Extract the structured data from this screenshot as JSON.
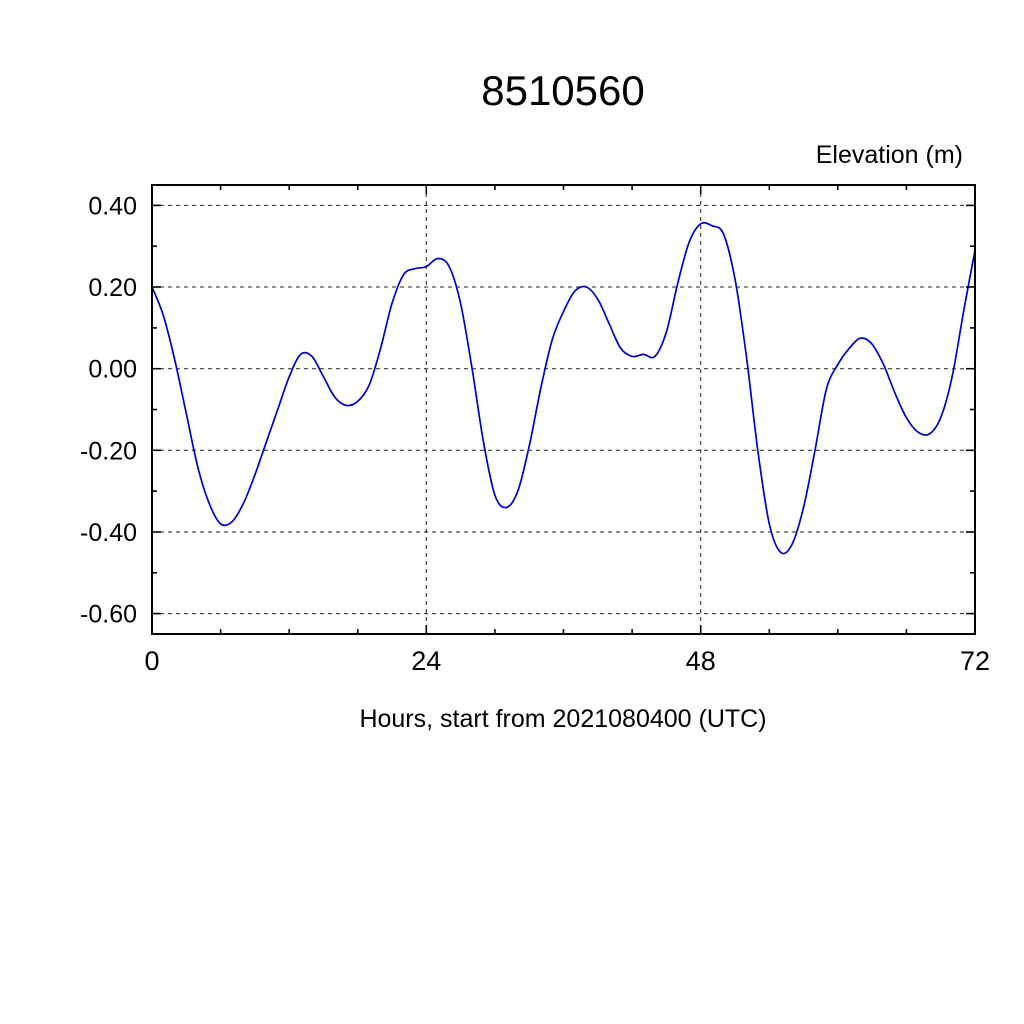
{
  "chart_data": {
    "type": "line",
    "title": "8510560",
    "ylabel": "Elevation (m)",
    "xlabel": "Hours, start from 2021080400 (UTC)",
    "xlim": [
      0,
      72
    ],
    "ylim": [
      -0.65,
      0.45
    ],
    "xticks": [
      0,
      24,
      48,
      72
    ],
    "xtick_labels": [
      "0",
      "24",
      "48",
      "72"
    ],
    "yticks": [
      0.4,
      0.2,
      0.0,
      -0.2,
      -0.4,
      -0.6
    ],
    "ytick_labels": [
      "0.40",
      "0.20",
      "0.00",
      "-0.20",
      "-0.40",
      "-0.60"
    ],
    "x_minor_step": 6,
    "y_minor_step": 0.1,
    "grid_x": [
      24,
      48
    ],
    "grid_y": [
      0.4,
      0.2,
      0.0,
      -0.2,
      -0.4,
      -0.6
    ],
    "line_color": "#0000cd",
    "frame_color": "#000000",
    "grid_on": true,
    "legend": "none",
    "series": [
      {
        "name": "elevation_m",
        "x": [
          0,
          1,
          2,
          3,
          4,
          5,
          6,
          7,
          8,
          9,
          10,
          11,
          12,
          13,
          14,
          15,
          16,
          17,
          18,
          19,
          20,
          21,
          22,
          23,
          24,
          25,
          26,
          27,
          28,
          29,
          30,
          31,
          32,
          33,
          34,
          35,
          36,
          37,
          38,
          39,
          40,
          41,
          42,
          43,
          44,
          45,
          46,
          47,
          48,
          49,
          50,
          51,
          52,
          53,
          54,
          55,
          56,
          57,
          58,
          59,
          60,
          61,
          62,
          63,
          64,
          65,
          66,
          67,
          68,
          69,
          70,
          71,
          72
        ],
        "y": [
          0.2,
          0.13,
          0.02,
          -0.11,
          -0.24,
          -0.33,
          -0.38,
          -0.375,
          -0.33,
          -0.26,
          -0.18,
          -0.1,
          -0.02,
          0.035,
          0.03,
          -0.02,
          -0.07,
          -0.09,
          -0.08,
          -0.04,
          0.05,
          0.16,
          0.23,
          0.245,
          0.25,
          0.27,
          0.25,
          0.16,
          0.0,
          -0.18,
          -0.31,
          -0.34,
          -0.3,
          -0.19,
          -0.05,
          0.07,
          0.14,
          0.19,
          0.2,
          0.17,
          0.11,
          0.05,
          0.03,
          0.035,
          0.03,
          0.09,
          0.21,
          0.31,
          0.355,
          0.35,
          0.33,
          0.22,
          0.03,
          -0.2,
          -0.38,
          -0.45,
          -0.43,
          -0.34,
          -0.2,
          -0.05,
          0.01,
          0.05,
          0.075,
          0.06,
          0.01,
          -0.06,
          -0.12,
          -0.155,
          -0.16,
          -0.12,
          -0.02,
          0.14,
          0.29
        ]
      }
    ]
  }
}
